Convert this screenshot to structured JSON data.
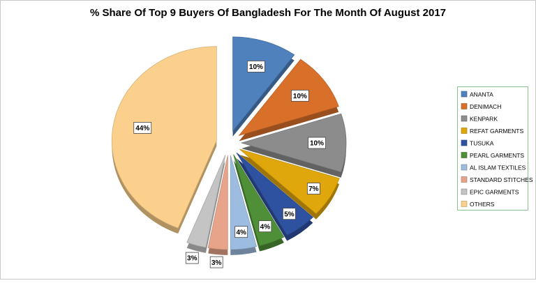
{
  "chart_data": {
    "type": "pie",
    "title": "% Share Of Top 9 Buyers Of Bangladesh For The Month Of August 2017",
    "categories": [
      "ANANTA",
      "DENIMACH",
      "KENPARK",
      "REFAT GARMENTS",
      "TUSUKA",
      "PEARL GARMENTS",
      "AL ISLAM TEXTILES",
      "STANDARD STITCHES",
      "EPIC GARMENTS",
      "OTHERS"
    ],
    "values": [
      10,
      10,
      10,
      7,
      5,
      4,
      4,
      3,
      3,
      44
    ],
    "value_labels": [
      "10%",
      "10%",
      "10%",
      "7%",
      "5%",
      "4%",
      "4%",
      "3%",
      "3%",
      "44%"
    ],
    "colors": [
      "#4f81bd",
      "#d9702a",
      "#8c8c8c",
      "#e0a70c",
      "#2f52a0",
      "#4f8f38",
      "#9dbde0",
      "#e8a48a",
      "#c4c4c4",
      "#fbd08c"
    ],
    "legend": "right"
  }
}
